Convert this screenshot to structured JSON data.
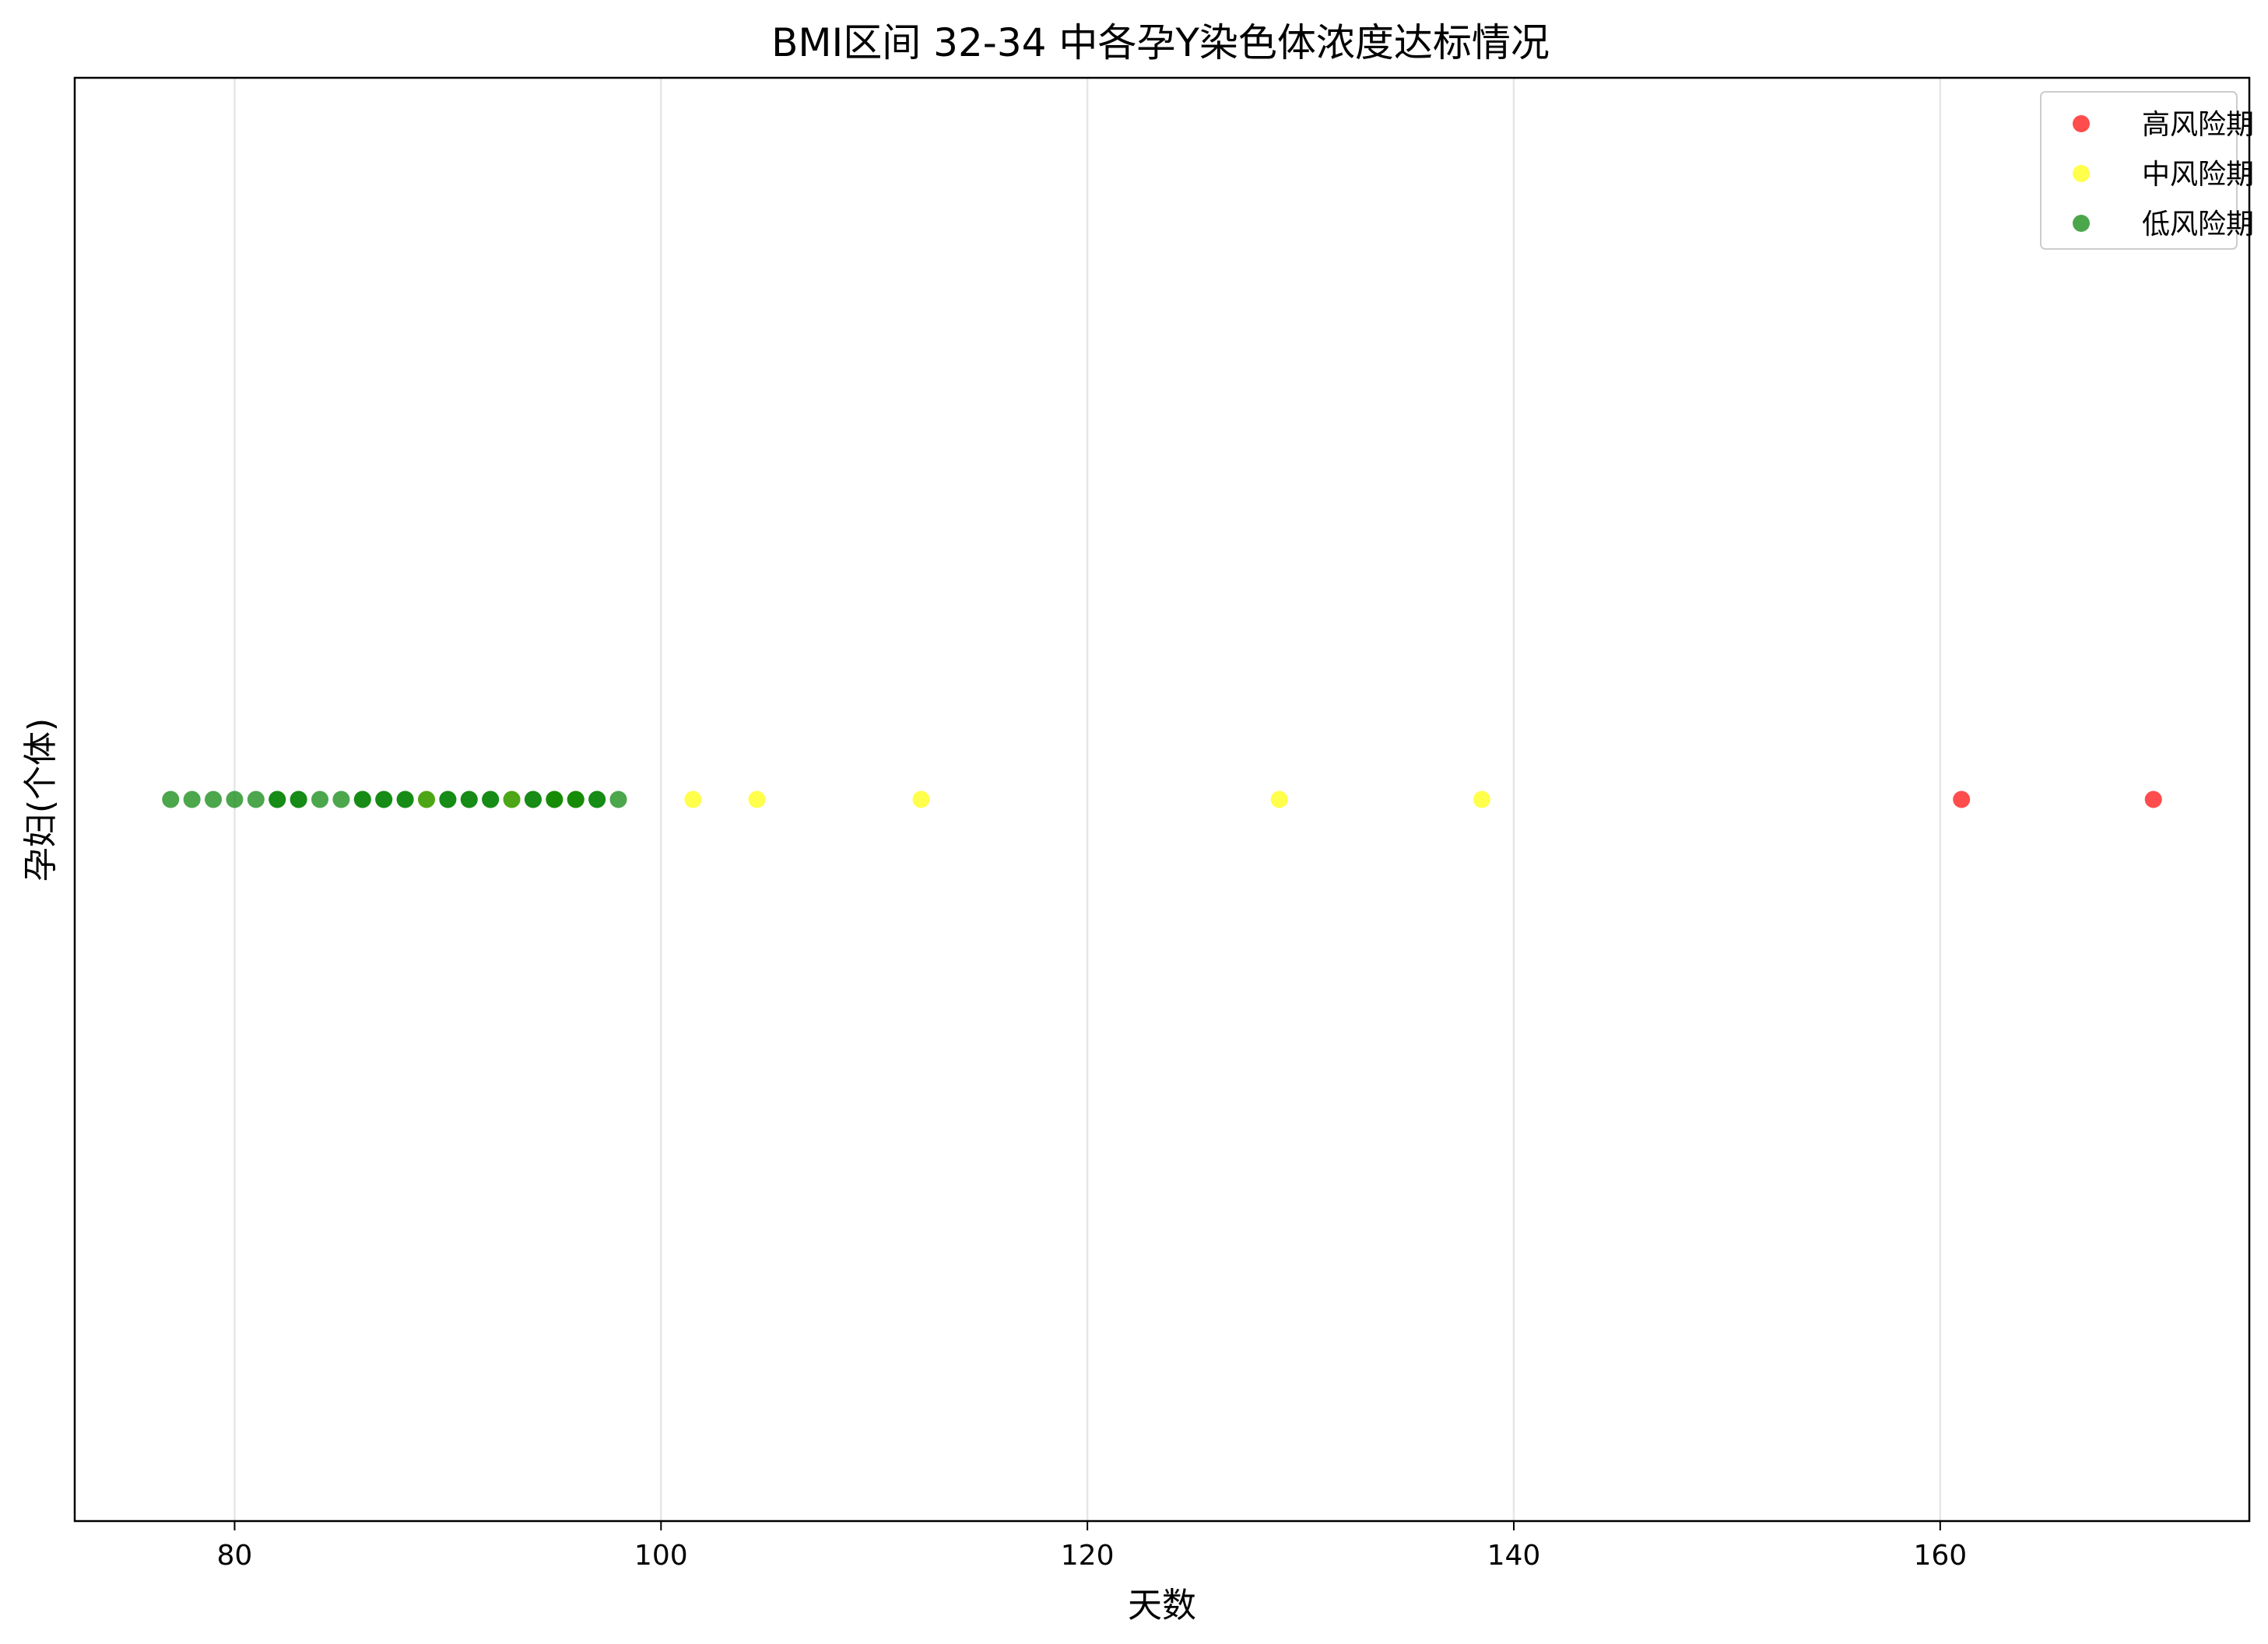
{
  "chart_data": {
    "type": "scatter",
    "title": "BMI区间 32-34 中各孕Y染色体浓度达标情况",
    "xlabel": "天数",
    "ylabel": "孕妇(个体)",
    "xlim": [
      72.5,
      174.5
    ],
    "xticks": [
      "80",
      "100",
      "120",
      "140",
      "160"
    ],
    "grid": "vertical",
    "legend_position": "top-right",
    "series": [
      {
        "name": "高风险期",
        "color": "#ff0000",
        "x": [
          161,
          170
        ],
        "y": [
          0,
          0
        ]
      },
      {
        "name": "中风险期",
        "color": "#ffff00",
        "x": [
          89,
          93,
          95,
          96,
          101.5,
          104.5,
          112.2,
          129,
          138.5
        ],
        "y": [
          0,
          0,
          0,
          0,
          0,
          0,
          0,
          0,
          0
        ]
      },
      {
        "name": "低风险期",
        "color": "#008000",
        "x": [
          77,
          78,
          79,
          80,
          81,
          82,
          82,
          83,
          83,
          84,
          85,
          86,
          86,
          87,
          87,
          88,
          88,
          89,
          90,
          90,
          91,
          91,
          92,
          92,
          93,
          94,
          94,
          95,
          95,
          96,
          96,
          97,
          97,
          98
        ],
        "y": [
          0,
          0,
          0,
          0,
          0,
          0,
          0,
          0,
          0,
          0,
          0,
          0,
          0,
          0,
          0,
          0,
          0,
          0,
          0,
          0,
          0,
          0,
          0,
          0,
          0,
          0,
          0,
          0,
          0,
          0,
          0,
          0,
          0,
          0
        ]
      }
    ]
  }
}
